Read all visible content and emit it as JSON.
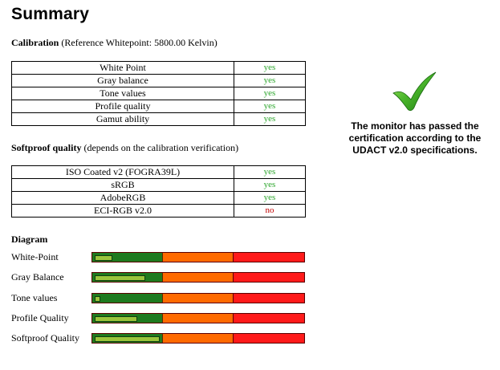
{
  "title": "Summary",
  "calibration": {
    "heading": "Calibration",
    "subheading": "(Reference Whitepoint: 5800.00 Kelvin)",
    "rows": [
      {
        "label": "White Point",
        "result": "yes"
      },
      {
        "label": "Gray balance",
        "result": "yes"
      },
      {
        "label": "Tone values",
        "result": "yes"
      },
      {
        "label": "Profile quality",
        "result": "yes"
      },
      {
        "label": "Gamut ability",
        "result": "yes"
      }
    ]
  },
  "softproof": {
    "heading": "Softproof quality",
    "subheading": "(depends on the calibration verification)",
    "rows": [
      {
        "label": "ISO Coated v2 (FOGRA39L)",
        "result": "yes"
      },
      {
        "label": "sRGB",
        "result": "yes"
      },
      {
        "label": "AdobeRGB",
        "result": "yes"
      },
      {
        "label": "ECI-RGB v2.0",
        "result": "no"
      }
    ]
  },
  "diagram": {
    "heading": "Diagram",
    "rows": [
      {
        "label": "White-Point",
        "level": 0.08
      },
      {
        "label": "Gray Balance",
        "level": 0.24
      },
      {
        "label": "Tone values",
        "level": 0.02
      },
      {
        "label": "Profile Quality",
        "level": 0.2
      },
      {
        "label": "Softproof Quality",
        "level": 0.31
      }
    ]
  },
  "certification": {
    "text": "The monitor has passed the certification according to the UDACT v2.0 specifications.",
    "icon": "checkmark-icon"
  },
  "colors": {
    "yes": "#2aa52a",
    "no": "#c00000",
    "bar_green": "#1f7a1f",
    "bar_orange": "#ff6a00",
    "bar_red": "#ff1a1a"
  }
}
